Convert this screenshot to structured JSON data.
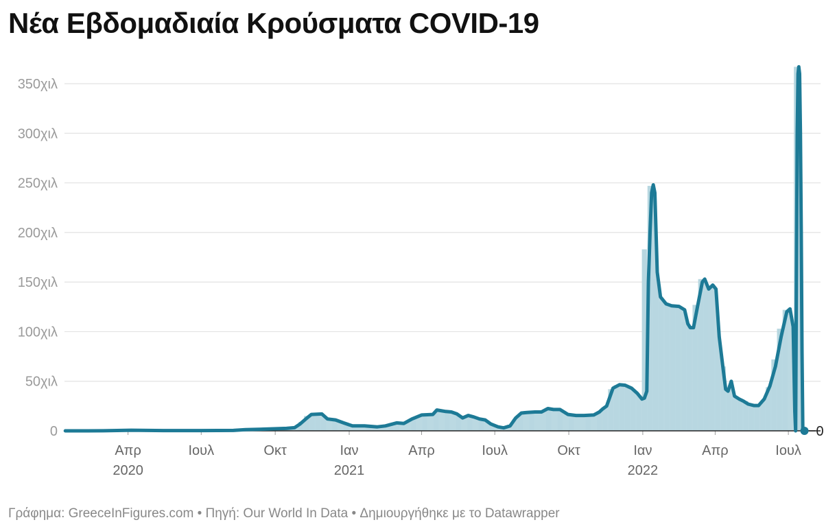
{
  "chart_data": {
    "type": "line",
    "title": "Νέα Εβδομαδιαία Κρούσματα COVID-19",
    "ylabel": "",
    "xlabel": "",
    "ylim": [
      0,
      370000
    ],
    "xlim": [
      "2020-01-13",
      "2022-08-10"
    ],
    "y_ticks": [
      {
        "value": 0,
        "label": "0"
      },
      {
        "value": 50000,
        "label": "50χιλ"
      },
      {
        "value": 100000,
        "label": "100χιλ"
      },
      {
        "value": 150000,
        "label": "150χιλ"
      },
      {
        "value": 200000,
        "label": "200χιλ"
      },
      {
        "value": 250000,
        "label": "250χιλ"
      },
      {
        "value": 300000,
        "label": "300χιλ"
      },
      {
        "value": 350000,
        "label": "350χιλ"
      }
    ],
    "x_ticks": [
      {
        "date": "2020-04-01",
        "label": "Απρ",
        "year": "2020"
      },
      {
        "date": "2020-07-01",
        "label": "Ιουλ",
        "year": ""
      },
      {
        "date": "2020-10-01",
        "label": "Οκτ",
        "year": ""
      },
      {
        "date": "2021-01-01",
        "label": "Ιαν",
        "year": "2021"
      },
      {
        "date": "2021-04-01",
        "label": "Απρ",
        "year": ""
      },
      {
        "date": "2021-07-01",
        "label": "Ιουλ",
        "year": ""
      },
      {
        "date": "2021-10-01",
        "label": "Οκτ",
        "year": ""
      },
      {
        "date": "2022-01-01",
        "label": "Ιαν",
        "year": "2022"
      },
      {
        "date": "2022-04-01",
        "label": "Απρ",
        "year": ""
      },
      {
        "date": "2022-07-01",
        "label": "Ιουλ",
        "year": ""
      }
    ],
    "grid": true,
    "end_label": "0",
    "colors": {
      "line": "#1d7a96",
      "bars": "#b7d7e0",
      "grid": "#e2e2e2",
      "axis": "#222222"
    },
    "series": [
      {
        "points": [
          [
            "2020-01-14",
            0
          ],
          [
            "2020-03-01",
            100
          ],
          [
            "2020-04-05",
            600
          ],
          [
            "2020-05-15",
            300
          ],
          [
            "2020-07-01",
            300
          ],
          [
            "2020-08-10",
            400
          ],
          [
            "2020-08-25",
            1200
          ],
          [
            "2020-09-20",
            1800
          ],
          [
            "2020-10-15",
            2500
          ],
          [
            "2020-10-25",
            3200
          ],
          [
            "2020-11-01",
            7000
          ],
          [
            "2020-11-08",
            12000
          ],
          [
            "2020-11-15",
            16500
          ],
          [
            "2020-11-28",
            17000
          ],
          [
            "2020-12-05",
            12000
          ],
          [
            "2020-12-15",
            11000
          ],
          [
            "2020-12-25",
            8000
          ],
          [
            "2021-01-05",
            5000
          ],
          [
            "2021-01-20",
            5000
          ],
          [
            "2021-02-05",
            4000
          ],
          [
            "2021-02-15",
            5000
          ],
          [
            "2021-03-01",
            8000
          ],
          [
            "2021-03-10",
            7500
          ],
          [
            "2021-03-20",
            12000
          ],
          [
            "2021-04-01",
            16000
          ],
          [
            "2021-04-15",
            16500
          ],
          [
            "2021-04-20",
            21000
          ],
          [
            "2021-05-01",
            19500
          ],
          [
            "2021-05-08",
            19000
          ],
          [
            "2021-05-15",
            17000
          ],
          [
            "2021-05-22",
            13000
          ],
          [
            "2021-05-29",
            15500
          ],
          [
            "2021-06-05",
            14000
          ],
          [
            "2021-06-12",
            12000
          ],
          [
            "2021-06-19",
            11000
          ],
          [
            "2021-06-26",
            7000
          ],
          [
            "2021-07-05",
            4000
          ],
          [
            "2021-07-12",
            3000
          ],
          [
            "2021-07-20",
            5000
          ],
          [
            "2021-07-27",
            13000
          ],
          [
            "2021-08-03",
            18000
          ],
          [
            "2021-08-10",
            18500
          ],
          [
            "2021-08-20",
            19000
          ],
          [
            "2021-08-28",
            19000
          ],
          [
            "2021-09-05",
            22500
          ],
          [
            "2021-09-12",
            21500
          ],
          [
            "2021-09-20",
            21500
          ],
          [
            "2021-09-30",
            16500
          ],
          [
            "2021-10-10",
            15500
          ],
          [
            "2021-10-20",
            15500
          ],
          [
            "2021-11-01",
            16000
          ],
          [
            "2021-11-08",
            19000
          ],
          [
            "2021-11-12",
            22000
          ],
          [
            "2021-11-17",
            25000
          ],
          [
            "2021-11-25",
            43000
          ],
          [
            "2021-12-03",
            46500
          ],
          [
            "2021-12-10",
            46000
          ],
          [
            "2021-12-18",
            43000
          ],
          [
            "2021-12-25",
            38000
          ],
          [
            "2021-12-31",
            32000
          ],
          [
            "2022-01-03",
            33000
          ],
          [
            "2022-01-06",
            40000
          ],
          [
            "2022-01-08",
            150000
          ],
          [
            "2022-01-10",
            200000
          ],
          [
            "2022-01-12",
            240000
          ],
          [
            "2022-01-14",
            248000
          ],
          [
            "2022-01-16",
            240000
          ],
          [
            "2022-01-19",
            160000
          ],
          [
            "2022-01-23",
            135000
          ],
          [
            "2022-01-30",
            128000
          ],
          [
            "2022-02-06",
            126000
          ],
          [
            "2022-02-15",
            125500
          ],
          [
            "2022-02-22",
            122000
          ],
          [
            "2022-02-26",
            108000
          ],
          [
            "2022-03-01",
            104000
          ],
          [
            "2022-03-05",
            104000
          ],
          [
            "2022-03-10",
            125000
          ],
          [
            "2022-03-16",
            150000
          ],
          [
            "2022-03-19",
            153000
          ],
          [
            "2022-03-24",
            143000
          ],
          [
            "2022-03-29",
            147000
          ],
          [
            "2022-04-02",
            143000
          ],
          [
            "2022-04-06",
            95000
          ],
          [
            "2022-04-11",
            62000
          ],
          [
            "2022-04-14",
            42000
          ],
          [
            "2022-04-17",
            40000
          ],
          [
            "2022-04-21",
            50000
          ],
          [
            "2022-04-25",
            35000
          ],
          [
            "2022-05-01",
            32000
          ],
          [
            "2022-05-06",
            30000
          ],
          [
            "2022-05-12",
            27000
          ],
          [
            "2022-05-19",
            25500
          ],
          [
            "2022-05-25",
            25500
          ],
          [
            "2022-06-01",
            32000
          ],
          [
            "2022-06-08",
            45000
          ],
          [
            "2022-06-15",
            65000
          ],
          [
            "2022-06-22",
            95000
          ],
          [
            "2022-06-29",
            120000
          ],
          [
            "2022-07-03",
            123000
          ],
          [
            "2022-07-07",
            105000
          ],
          [
            "2022-07-09",
            20000
          ],
          [
            "2022-07-10",
            0
          ],
          [
            "2022-07-11",
            150000
          ],
          [
            "2022-07-12",
            300000
          ],
          [
            "2022-07-13",
            360000
          ],
          [
            "2022-07-14",
            367000
          ],
          [
            "2022-07-15",
            360000
          ],
          [
            "2022-07-16",
            300000
          ],
          [
            "2022-07-17",
            200000
          ],
          [
            "2022-07-18",
            80000
          ],
          [
            "2022-07-19",
            0
          ],
          [
            "2022-07-21",
            0
          ]
        ]
      }
    ],
    "bars": [
      [
        "2020-03-02",
        300
      ],
      [
        "2020-04-06",
        700
      ],
      [
        "2020-08-10",
        500
      ],
      [
        "2020-08-24",
        1300
      ],
      [
        "2020-09-21",
        1900
      ],
      [
        "2020-10-19",
        3000
      ],
      [
        "2020-11-02",
        9000
      ],
      [
        "2020-11-09",
        15000
      ],
      [
        "2020-11-16",
        17000
      ],
      [
        "2020-11-23",
        16000
      ],
      [
        "2020-11-30",
        12500
      ],
      [
        "2020-12-14",
        11000
      ],
      [
        "2020-12-28",
        7000
      ],
      [
        "2021-01-25",
        5000
      ],
      [
        "2021-02-22",
        6000
      ],
      [
        "2021-03-01",
        8000
      ],
      [
        "2021-03-22",
        12000
      ],
      [
        "2021-04-05",
        15000
      ],
      [
        "2021-04-19",
        20000
      ],
      [
        "2021-05-03",
        19000
      ],
      [
        "2021-05-17",
        15000
      ],
      [
        "2021-05-31",
        14500
      ],
      [
        "2021-06-14",
        11500
      ],
      [
        "2021-06-28",
        6000
      ],
      [
        "2021-07-26",
        12000
      ],
      [
        "2021-08-02",
        17000
      ],
      [
        "2021-08-16",
        18500
      ],
      [
        "2021-09-06",
        22000
      ],
      [
        "2021-09-20",
        21000
      ],
      [
        "2021-10-04",
        16000
      ],
      [
        "2021-10-25",
        15500
      ],
      [
        "2021-11-08",
        18000
      ],
      [
        "2021-11-15",
        22000
      ],
      [
        "2021-11-22",
        42000
      ],
      [
        "2021-11-29",
        46000
      ],
      [
        "2021-12-06",
        46000
      ],
      [
        "2021-12-13",
        44000
      ],
      [
        "2021-12-20",
        40000
      ],
      [
        "2021-12-27",
        36000
      ],
      [
        "2022-01-03",
        183000
      ],
      [
        "2022-01-10",
        247000
      ],
      [
        "2022-01-17",
        153000
      ],
      [
        "2022-01-24",
        130000
      ],
      [
        "2022-01-31",
        127000
      ],
      [
        "2022-02-07",
        126000
      ],
      [
        "2022-02-14",
        124000
      ],
      [
        "2022-02-21",
        110000
      ],
      [
        "2022-02-28",
        105000
      ],
      [
        "2022-03-07",
        127000
      ],
      [
        "2022-03-14",
        153000
      ],
      [
        "2022-03-21",
        141000
      ],
      [
        "2022-03-28",
        146000
      ],
      [
        "2022-04-04",
        95000
      ],
      [
        "2022-04-11",
        65000
      ],
      [
        "2022-04-18",
        42000
      ],
      [
        "2022-04-25",
        33000
      ],
      [
        "2022-05-02",
        32000
      ],
      [
        "2022-05-09",
        30000
      ],
      [
        "2022-05-16",
        27000
      ],
      [
        "2022-05-23",
        25000
      ],
      [
        "2022-05-30",
        30000
      ],
      [
        "2022-06-06",
        44000
      ],
      [
        "2022-06-13",
        72000
      ],
      [
        "2022-06-20",
        103000
      ],
      [
        "2022-06-27",
        122000
      ],
      [
        "2022-07-11",
        367000
      ]
    ]
  },
  "footer": "Γράφημα: GreeceInFigures.com • Πηγή: Our World In Data • Δημιουργήθηκε με το Datawrapper"
}
